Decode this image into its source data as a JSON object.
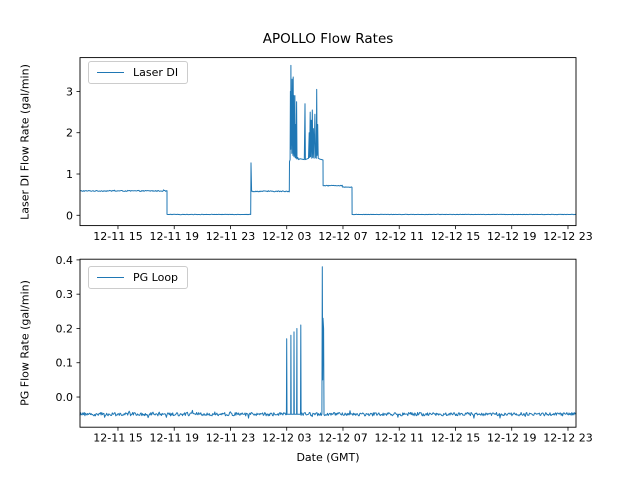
{
  "figure_title": "APOLLO Flow Rates",
  "accent_color": "#1f77b4",
  "chart_data": [
    {
      "type": "line",
      "ylabel": "Laser DI Flow Rate (gal/min)",
      "legend": {
        "position": "upper left",
        "entries": [
          "Laser DI"
        ]
      },
      "line_color": "#1f77b4",
      "grid": false,
      "x_unit": "hours since 12-11 00:00 GMT",
      "xlim": [
        12.3,
        47.57
      ],
      "ylim": [
        -0.25,
        3.82
      ],
      "xticks": [
        {
          "t": 15,
          "label": "12-11 15"
        },
        {
          "t": 19,
          "label": "12-11 19"
        },
        {
          "t": 23,
          "label": "12-11 23"
        },
        {
          "t": 27,
          "label": "12-12 03"
        },
        {
          "t": 31,
          "label": "12-12 07"
        },
        {
          "t": 35,
          "label": "12-12 11"
        },
        {
          "t": 39,
          "label": "12-12 15"
        },
        {
          "t": 43,
          "label": "12-12 19"
        },
        {
          "t": 47,
          "label": "12-12 23"
        }
      ],
      "yticks": [
        {
          "v": 0,
          "label": "0"
        },
        {
          "v": 1,
          "label": "1"
        },
        {
          "v": 2,
          "label": "2"
        },
        {
          "v": 3,
          "label": "3"
        }
      ],
      "series": [
        {
          "name": "Laser DI",
          "segments": [
            {
              "flat": true,
              "t0": 12.3,
              "t1": 18.49,
              "v": 0.59,
              "noise": 0.012
            },
            {
              "flat": true,
              "t0": 18.49,
              "t1": 24.44,
              "v": 0.02,
              "noise": 0.003
            },
            {
              "path": [
                [
                  24.44,
                  0.02
                ],
                [
                  24.46,
                  1.27
                ],
                [
                  24.5,
                  0.58
                ]
              ]
            },
            {
              "flat": true,
              "t0": 24.5,
              "t1": 27.18,
              "v": 0.58,
              "noise": 0.012
            },
            {
              "path": [
                [
                  27.18,
                  0.58
                ],
                [
                  27.2,
                  1.3
                ],
                [
                  27.24,
                  1.35
                ],
                [
                  27.26,
                  3.0
                ],
                [
                  27.28,
                  1.6
                ],
                [
                  27.3,
                  3.63
                ],
                [
                  27.32,
                  1.7
                ],
                [
                  27.34,
                  2.9
                ],
                [
                  27.36,
                  1.5
                ],
                [
                  27.38,
                  3.3
                ],
                [
                  27.4,
                  1.8
                ],
                [
                  27.42,
                  2.6
                ],
                [
                  27.44,
                  1.45
                ],
                [
                  27.46,
                  3.35
                ],
                [
                  27.48,
                  1.5
                ],
                [
                  27.5,
                  2.9
                ],
                [
                  27.52,
                  1.42
                ],
                [
                  27.54,
                  2.4
                ],
                [
                  27.56,
                  1.45
                ],
                [
                  27.58,
                  2.9
                ],
                [
                  27.6,
                  1.4
                ],
                [
                  27.63,
                  2.2
                ],
                [
                  27.66,
                  1.38
                ],
                [
                  27.7,
                  2.75
                ],
                [
                  27.73,
                  1.36
                ],
                [
                  27.78,
                  1.4
                ],
                [
                  27.85,
                  1.35
                ],
                [
                  27.95,
                  1.37
                ],
                [
                  28.25,
                  1.35
                ],
                [
                  28.3,
                  2.7
                ],
                [
                  28.33,
                  1.35
                ],
                [
                  28.55,
                  1.38
                ],
                [
                  28.6,
                  2.0
                ],
                [
                  28.63,
                  1.4
                ],
                [
                  28.67,
                  2.5
                ],
                [
                  28.7,
                  1.42
                ],
                [
                  28.74,
                  2.3
                ],
                [
                  28.78,
                  1.38
                ],
                [
                  28.82,
                  2.55
                ],
                [
                  28.86,
                  1.4
                ],
                [
                  28.9,
                  2.1
                ],
                [
                  28.95,
                  1.38
                ],
                [
                  29.0,
                  2.45
                ],
                [
                  29.05,
                  1.4
                ],
                [
                  29.1,
                  1.38
                ],
                [
                  29.13,
                  3.05
                ],
                [
                  29.16,
                  1.45
                ],
                [
                  29.2,
                  2.2
                ],
                [
                  29.24,
                  1.38
                ],
                [
                  29.35,
                  1.36
                ],
                [
                  29.5,
                  1.35
                ],
                [
                  29.58,
                  1.34
                ],
                [
                  29.59,
                  0.73
                ]
              ]
            },
            {
              "flat": true,
              "t0": 29.59,
              "t1": 30.95,
              "v": 0.72,
              "noise": 0.008
            },
            {
              "flat": true,
              "t0": 30.95,
              "t1": 31.64,
              "v": 0.68,
              "noise": 0.008
            },
            {
              "path": [
                [
                  31.64,
                  0.68
                ],
                [
                  31.65,
                  0.02
                ]
              ]
            },
            {
              "flat": true,
              "t0": 31.65,
              "t1": 47.57,
              "v": 0.02,
              "noise": 0.003
            }
          ]
        }
      ]
    },
    {
      "type": "line",
      "ylabel": "PG Flow Rate (gal/min)",
      "xlabel": "Date (GMT)",
      "legend": {
        "position": "upper left",
        "entries": [
          "PG Loop"
        ]
      },
      "line_color": "#1f77b4",
      "grid": false,
      "x_unit": "hours since 12-11 00:00 GMT",
      "xlim": [
        12.3,
        47.57
      ],
      "ylim": [
        -0.088,
        0.402
      ],
      "xticks": [
        {
          "t": 15,
          "label": "12-11 15"
        },
        {
          "t": 19,
          "label": "12-11 19"
        },
        {
          "t": 23,
          "label": "12-11 23"
        },
        {
          "t": 27,
          "label": "12-12 03"
        },
        {
          "t": 31,
          "label": "12-12 07"
        },
        {
          "t": 35,
          "label": "12-12 11"
        },
        {
          "t": 39,
          "label": "12-12 15"
        },
        {
          "t": 43,
          "label": "12-12 19"
        },
        {
          "t": 47,
          "label": "12-12 23"
        }
      ],
      "yticks": [
        {
          "v": 0.0,
          "label": "0.0"
        },
        {
          "v": 0.1,
          "label": "0.1"
        },
        {
          "v": 0.2,
          "label": "0.2"
        },
        {
          "v": 0.3,
          "label": "0.3"
        },
        {
          "v": 0.4,
          "label": "0.4"
        }
      ],
      "series": [
        {
          "name": "PG Loop",
          "segments": [
            {
              "flat": true,
              "t0": 12.3,
              "t1": 26.98,
              "v": -0.05,
              "noise": 0.005
            },
            {
              "path": [
                [
                  26.98,
                  -0.05
                ],
                [
                  27.0,
                  0.17
                ],
                [
                  27.02,
                  -0.05
                ],
                [
                  27.28,
                  -0.05
                ],
                [
                  27.3,
                  0.18
                ],
                [
                  27.32,
                  -0.05
                ],
                [
                  27.5,
                  -0.05
                ],
                [
                  27.52,
                  0.19
                ],
                [
                  27.54,
                  -0.05
                ],
                [
                  27.7,
                  -0.05
                ],
                [
                  27.72,
                  0.2
                ],
                [
                  27.74,
                  -0.05
                ],
                [
                  27.98,
                  -0.05
                ],
                [
                  28.0,
                  0.21
                ],
                [
                  28.02,
                  -0.05
                ]
              ]
            },
            {
              "flat": true,
              "t0": 28.02,
              "t1": 29.5,
              "v": -0.05,
              "noise": 0.005
            },
            {
              "path": [
                [
                  29.5,
                  -0.05
                ],
                [
                  29.53,
                  0.38
                ],
                [
                  29.56,
                  0.05
                ],
                [
                  29.58,
                  0.23
                ],
                [
                  29.62,
                  0.2
                ],
                [
                  29.65,
                  -0.05
                ]
              ]
            },
            {
              "flat": true,
              "t0": 29.65,
              "t1": 47.57,
              "v": -0.05,
              "noise": 0.005
            }
          ]
        }
      ]
    }
  ]
}
